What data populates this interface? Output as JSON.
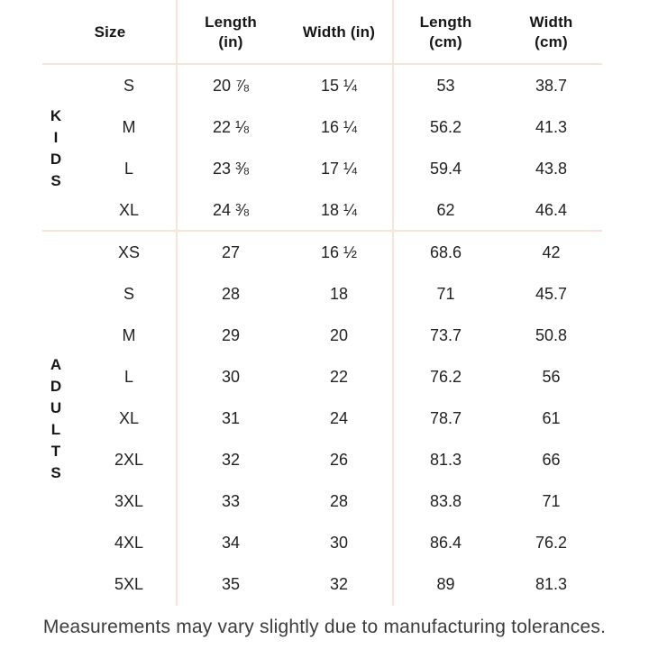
{
  "table": {
    "headers": {
      "size": [
        "Size"
      ],
      "length_in": [
        "Length",
        "(in)"
      ],
      "width_in": [
        "Width (in)"
      ],
      "length_cm": [
        "Length",
        "(cm)"
      ],
      "width_cm": [
        "Width",
        "(cm)"
      ]
    },
    "sections": [
      {
        "label": "KIDS",
        "label_letters": [
          "K",
          "I",
          "D",
          "S"
        ],
        "rows": [
          {
            "size": "S",
            "length_in": "20 ⅞",
            "width_in": "15 ¼",
            "length_cm": "53",
            "width_cm": "38.7"
          },
          {
            "size": "M",
            "length_in": "22 ⅛",
            "width_in": "16 ¼",
            "length_cm": "56.2",
            "width_cm": "41.3"
          },
          {
            "size": "L",
            "length_in": "23 ⅜",
            "width_in": "17 ¼",
            "length_cm": "59.4",
            "width_cm": "43.8"
          },
          {
            "size": "XL",
            "length_in": "24 ⅜",
            "width_in": "18 ¼",
            "length_cm": "62",
            "width_cm": "46.4"
          }
        ]
      },
      {
        "label": "ADULTS",
        "label_letters": [
          "A",
          "D",
          "U",
          "L",
          "T",
          "S"
        ],
        "rows": [
          {
            "size": "XS",
            "length_in": "27",
            "width_in": "16 ½",
            "length_cm": "68.6",
            "width_cm": "42"
          },
          {
            "size": "S",
            "length_in": "28",
            "width_in": "18",
            "length_cm": "71",
            "width_cm": "45.7"
          },
          {
            "size": "M",
            "length_in": "29",
            "width_in": "20",
            "length_cm": "73.7",
            "width_cm": "50.8"
          },
          {
            "size": "L",
            "length_in": "30",
            "width_in": "22",
            "length_cm": "76.2",
            "width_cm": "56"
          },
          {
            "size": "XL",
            "length_in": "31",
            "width_in": "24",
            "length_cm": "78.7",
            "width_cm": "61"
          },
          {
            "size": "2XL",
            "length_in": "32",
            "width_in": "26",
            "length_cm": "81.3",
            "width_cm": "66"
          },
          {
            "size": "3XL",
            "length_in": "33",
            "width_in": "28",
            "length_cm": "83.8",
            "width_cm": "71"
          },
          {
            "size": "4XL",
            "length_in": "34",
            "width_in": "30",
            "length_cm": "86.4",
            "width_cm": "76.2"
          },
          {
            "size": "5XL",
            "length_in": "35",
            "width_in": "32",
            "length_cm": "89",
            "width_cm": "81.3"
          }
        ]
      }
    ]
  },
  "footer": {
    "note": "Measurements may vary slightly due to manufacturing tolerances."
  },
  "colors": {
    "divider": "#f9e2d6",
    "text": "#1e1e1e",
    "footer_text": "#3c3c3c",
    "background": "#ffffff"
  }
}
